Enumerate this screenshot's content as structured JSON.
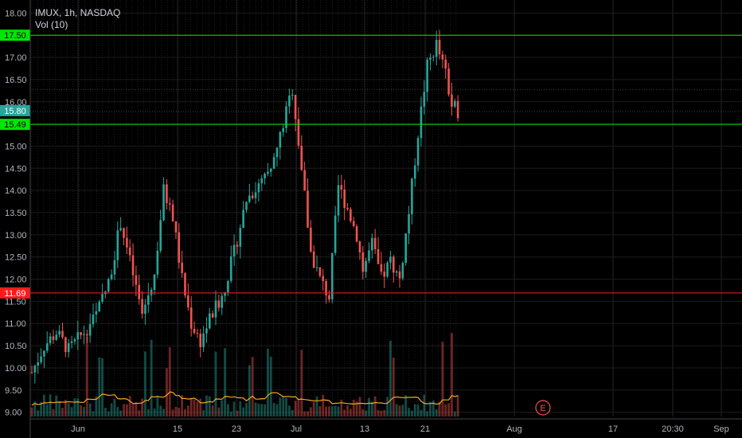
{
  "header": {
    "title": "IMUX, 1h, NASDAQ",
    "volume_label": "Vol (10)"
  },
  "colors": {
    "up": "#26a69a",
    "down": "#ef5350",
    "support_line": "#00e600",
    "resistance_line": "#ff1a1a",
    "current_badge": "#26a69a",
    "volume_ma": "#f5a623",
    "grid": "#3a3a3a",
    "earnings": "#ef5350"
  },
  "chart_data": {
    "type": "candlestick",
    "symbol": "IMUX",
    "interval": "1h",
    "exchange": "NASDAQ",
    "y_ticks": [
      "9.00",
      "9.50",
      "10.00",
      "10.50",
      "11.00",
      "11.50",
      "12.00",
      "12.50",
      "13.00",
      "13.50",
      "14.00",
      "14.50",
      "15.00",
      "15.50",
      "16.00",
      "16.50",
      "17.00",
      "17.50",
      "18.00"
    ],
    "ylim": [
      8.85,
      18.15
    ],
    "x_ticks": [
      "Jun",
      "15",
      "23",
      "Jul",
      "13",
      "21",
      "Aug",
      "17",
      "20:30",
      "Sep"
    ],
    "horizontal_levels": [
      {
        "price": 17.5,
        "label": "17.50",
        "kind": "support"
      },
      {
        "price": 15.49,
        "label": "15.49",
        "kind": "support"
      },
      {
        "price": 11.69,
        "label": "11.69",
        "kind": "resistance"
      }
    ],
    "current_price": {
      "value": 15.8,
      "label": "15.80"
    },
    "price_path": [
      [
        0,
        9.9
      ],
      [
        4,
        10.5
      ],
      [
        8,
        10.8
      ],
      [
        12,
        10.4
      ],
      [
        17,
        10.8
      ],
      [
        21,
        11.2
      ],
      [
        25,
        11.9
      ],
      [
        29,
        13.3
      ],
      [
        32,
        12.4
      ],
      [
        36,
        11.2
      ],
      [
        40,
        12.1
      ],
      [
        43,
        14.0
      ],
      [
        46,
        13.4
      ],
      [
        49,
        12.0
      ],
      [
        52,
        11.0
      ],
      [
        55,
        10.6
      ],
      [
        58,
        11.1
      ],
      [
        62,
        11.6
      ],
      [
        66,
        12.6
      ],
      [
        70,
        13.8
      ],
      [
        74,
        14.1
      ],
      [
        78,
        14.4
      ],
      [
        82,
        15.5
      ],
      [
        85,
        16.3
      ],
      [
        88,
        14.5
      ],
      [
        91,
        12.6
      ],
      [
        94,
        12.0
      ],
      [
        97,
        11.6
      ],
      [
        100,
        14.1
      ],
      [
        103,
        13.6
      ],
      [
        106,
        13.0
      ],
      [
        108,
        12.2
      ],
      [
        111,
        12.8
      ],
      [
        114,
        12.0
      ],
      [
        117,
        12.4
      ],
      [
        120,
        12.0
      ],
      [
        123,
        13.5
      ],
      [
        126,
        15.3
      ],
      [
        129,
        16.8
      ],
      [
        132,
        17.3
      ],
      [
        135,
        16.6
      ],
      [
        137,
        15.9
      ],
      [
        139,
        15.8
      ]
    ],
    "earnings_marker": "E"
  }
}
